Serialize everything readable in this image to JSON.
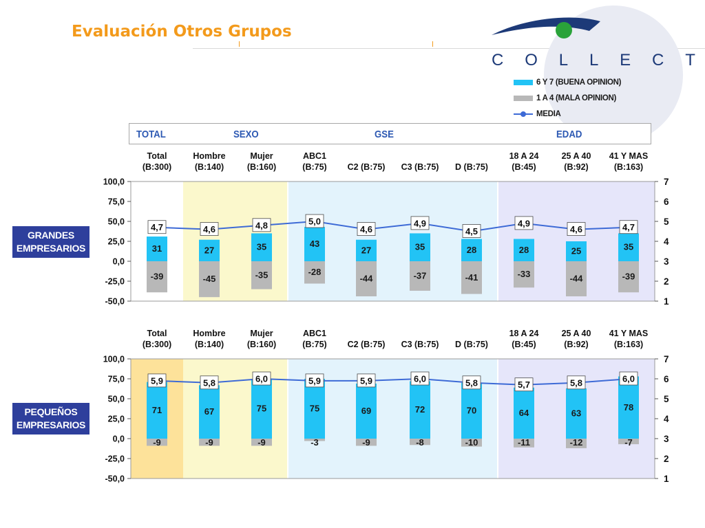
{
  "page": {
    "title": "Evaluación Otros Grupos",
    "logo": "C O L L E C T",
    "logo_letters": [
      "C",
      "O",
      "L",
      "L",
      "E",
      "C",
      "T"
    ]
  },
  "legend": {
    "items": [
      {
        "label": "6 Y 7 (BUENA OPINION)",
        "color": "#22c3f5",
        "kind": "bar"
      },
      {
        "label": "1 A 4 (MALA OPINION)",
        "color": "#b8b8b8",
        "kind": "bar"
      },
      {
        "label": "MEDIA",
        "color": "#3d6ad6",
        "kind": "line"
      }
    ]
  },
  "header": {
    "groups": [
      "TOTAL",
      "SEXO",
      "GSE",
      "EDAD"
    ]
  },
  "side_labels": {
    "top": "GRANDES EMPRESARIOS",
    "bottom": "PEQUEÑOS EMPRESARIOS"
  },
  "chart_data": [
    {
      "type": "bar",
      "group": "GRANDES EMPRESARIOS",
      "categories": [
        "Total\n(B:300)",
        "Hombre\n(B:140)",
        "Mujer\n(B:160)",
        "ABC1\n(B:75)",
        "C2 (B:75)",
        "C3 (B:75)",
        "D (B:75)",
        "18 A 24\n(B:45)",
        "25 A 40\n(B:92)",
        "41 Y MAS\n(B:163)"
      ],
      "series": [
        {
          "name": "6 Y 7 (BUENA OPINION)",
          "values": [
            31,
            27,
            35,
            43,
            27,
            35,
            28,
            28,
            25,
            35
          ],
          "labels": [
            "31",
            "27",
            "35",
            "43",
            "27",
            "35",
            "28",
            "28",
            "25",
            "35"
          ]
        },
        {
          "name": "1 A 4 (MALA OPINION)",
          "values": [
            -39,
            -45,
            -35,
            -28,
            -44,
            -37,
            -41,
            -33,
            -44,
            -39
          ],
          "labels": [
            "-39",
            "-45",
            "-35",
            "-28",
            "-44",
            "-37",
            "-41",
            "-33",
            "-44",
            "-39"
          ]
        },
        {
          "name": "MEDIA",
          "axis": "right",
          "values": [
            4.7,
            4.6,
            4.8,
            5.0,
            4.6,
            4.9,
            4.5,
            4.9,
            4.6,
            4.7
          ],
          "labels": [
            "4,7",
            "4,6",
            "4,8",
            "5,0",
            "4,6",
            "4,9",
            "4,5",
            "4,9",
            "4,6",
            "4,7"
          ]
        }
      ],
      "ylim": [
        -50,
        100
      ],
      "yticks": [
        "100,0",
        "75,0",
        "50,0",
        "25,0",
        "0,0",
        "-25,0",
        "-50,0"
      ],
      "y2lim": [
        1,
        7
      ],
      "y2ticks": [
        "7",
        "6",
        "5",
        "4",
        "3",
        "2",
        "1"
      ],
      "highlight_columns": []
    },
    {
      "type": "bar",
      "group": "PEQUEÑOS EMPRESARIOS",
      "categories": [
        "Total\n(B:300)",
        "Hombre\n(B:140)",
        "Mujer\n(B:160)",
        "ABC1\n(B:75)",
        "C2 (B:75)",
        "C3 (B:75)",
        "D (B:75)",
        "18 A 24\n(B:45)",
        "25 A 40\n(B:92)",
        "41 Y MAS\n(B:163)"
      ],
      "series": [
        {
          "name": "6 Y 7 (BUENA OPINION)",
          "values": [
            71,
            67,
            75,
            75,
            69,
            72,
            70,
            64,
            63,
            78
          ],
          "labels": [
            "71",
            "67",
            "75",
            "75",
            "69",
            "72",
            "70",
            "64",
            "63",
            "78"
          ]
        },
        {
          "name": "1 A 4 (MALA OPINION)",
          "values": [
            -9,
            -9,
            -9,
            -3,
            -9,
            -8,
            -10,
            -11,
            -12,
            -7
          ],
          "labels": [
            "-9",
            "-9",
            "-9",
            "-3",
            "-9",
            "-8",
            "-10",
            "-11",
            "-12",
            "-7"
          ]
        },
        {
          "name": "MEDIA",
          "axis": "right",
          "values": [
            5.9,
            5.8,
            6.0,
            5.9,
            5.9,
            6.0,
            5.8,
            5.7,
            5.8,
            6.0
          ],
          "labels": [
            "5,9",
            "5,8",
            "6,0",
            "5,9",
            "5,9",
            "6,0",
            "5,8",
            "5,7",
            "5,8",
            "6,0"
          ]
        }
      ],
      "ylim": [
        -50,
        100
      ],
      "yticks": [
        "100,0",
        "75,0",
        "50,0",
        "25,0",
        "0,0",
        "-25,0",
        "-50,0"
      ],
      "y2lim": [
        1,
        7
      ],
      "y2ticks": [
        "7",
        "6",
        "5",
        "4",
        "3",
        "2",
        "1"
      ],
      "highlight_columns": [
        0
      ]
    }
  ],
  "colors": {
    "title": "#f39a1b",
    "positive_bar": "#22c3f5",
    "negative_bar": "#b8b8b8",
    "media_line": "#3d6ad6",
    "sexo_band": "#fbf8cc",
    "gse_band": "#e3f3fc",
    "edad_band": "#e6e6fa",
    "total_highlight": "#fde29a",
    "side_label_bg": "#2e3f9c",
    "header_text": "#2d59b3"
  }
}
